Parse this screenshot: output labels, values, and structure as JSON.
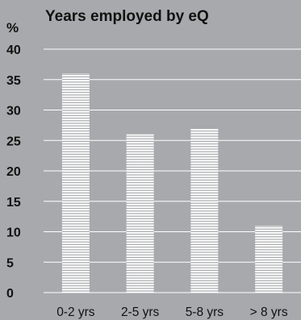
{
  "chart_data": {
    "type": "bar",
    "title": "Years employed by eQ",
    "ylabel": "%",
    "xlabel": "",
    "categories": [
      "0-2 yrs",
      "2-5 yrs",
      "5-8 yrs",
      "> 8 yrs"
    ],
    "values": [
      36,
      26,
      27,
      11
    ],
    "ylim": [
      0,
      40
    ],
    "yticks": [
      0,
      5,
      10,
      15,
      20,
      25,
      30,
      35,
      40
    ],
    "grid": true,
    "legend": "none",
    "colors": {
      "background": "#a8a9ac",
      "bar": "#ffffff",
      "bar_stripe": "#a8a9ac",
      "grid": "#ffffff",
      "text": "#111111"
    }
  }
}
